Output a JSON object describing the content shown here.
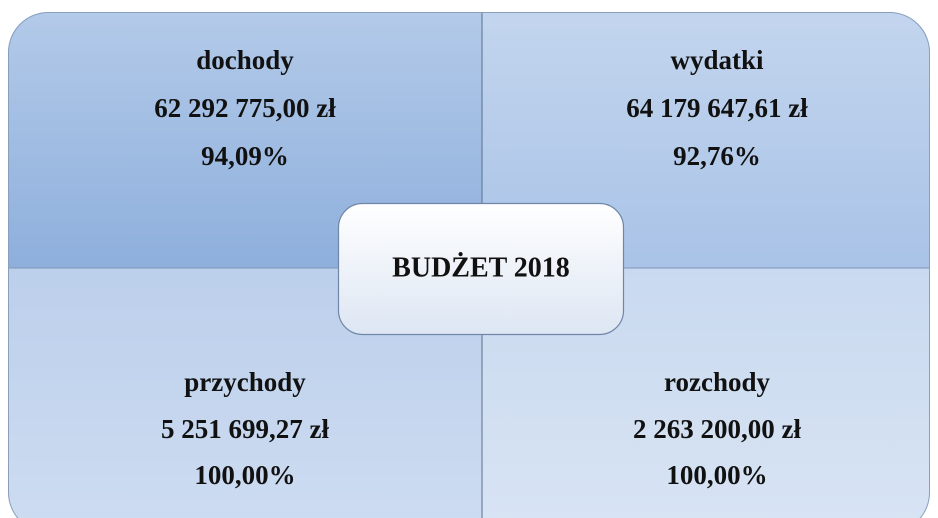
{
  "center": {
    "title": "BUDŻET 2018"
  },
  "quadrants": [
    {
      "title": "dochody",
      "amount": "62 292 775,00 zł",
      "percent": "94,09%"
    },
    {
      "title": "wydatki",
      "amount": "64 179 647,61 zł",
      "percent": "92,76%"
    },
    {
      "title": "przychody",
      "amount": "5 251 699,27 zł",
      "percent": "100,00%"
    },
    {
      "title": "rozchody",
      "amount": "2 263 200,00 zł",
      "percent": "100,00%"
    }
  ]
}
